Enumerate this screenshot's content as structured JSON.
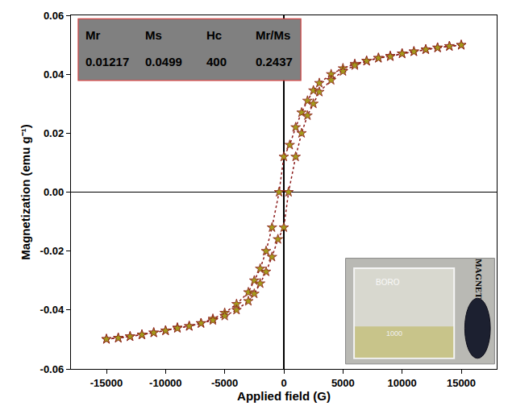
{
  "chart_data": {
    "type": "scatter",
    "x_label": "Applied field (G)",
    "y_label": "Magnetization (emu g⁻¹)",
    "xlim": [
      -18000,
      18000
    ],
    "xticks": [
      -15000,
      -10000,
      -5000,
      0,
      5000,
      10000,
      15000
    ],
    "ylim": [
      -0.06,
      0.06
    ],
    "yticks": [
      -0.06,
      -0.04,
      -0.02,
      {
        "value": 0,
        "label": "0.00"
      },
      0.02,
      0.04,
      0.06
    ],
    "grid": false,
    "marker": "star",
    "line_style": "dotted",
    "color": "#8b1a1a",
    "series": [
      {
        "x": [
          15000,
          14000,
          13000,
          12000,
          11000,
          10000,
          9000,
          8000,
          7000,
          6000,
          5000,
          4000,
          3000,
          2500,
          2000,
          1500,
          1000,
          500,
          0,
          -400,
          -1000,
          -1500,
          -2000,
          -2500,
          -3000,
          -4000,
          -5000,
          -6000,
          -7000,
          -8000,
          -9000,
          -10000,
          -11000,
          -12000,
          -13000,
          -14000,
          -15000
        ],
        "values": [
          0.0499,
          0.0495,
          0.049,
          0.0484,
          0.0477,
          0.047,
          0.0462,
          0.0455,
          0.0445,
          0.0435,
          0.042,
          0.04,
          0.037,
          0.0345,
          0.031,
          0.027,
          0.022,
          0.016,
          0.012,
          0.0,
          -0.012,
          -0.02,
          -0.026,
          -0.03,
          -0.034,
          -0.038,
          -0.041,
          -0.043,
          -0.0445,
          -0.0455,
          -0.046,
          -0.047,
          -0.0477,
          -0.0484,
          -0.049,
          -0.0495,
          -0.0499
        ]
      },
      {
        "x": [
          -15000,
          -14000,
          -13000,
          -12000,
          -11000,
          -10000,
          -9000,
          -8000,
          -7000,
          -6000,
          -5000,
          -4000,
          -3000,
          -2500,
          -2000,
          -1500,
          -1000,
          -500,
          0,
          400,
          1000,
          1500,
          2000,
          2500,
          3000,
          4000,
          5000,
          6000,
          7000,
          8000,
          9000,
          10000,
          11000,
          12000,
          13000,
          14000,
          15000
        ],
        "values": [
          -0.0499,
          -0.0495,
          -0.049,
          -0.0484,
          -0.0477,
          -0.047,
          -0.0462,
          -0.0455,
          -0.0445,
          -0.0435,
          -0.042,
          -0.04,
          -0.037,
          -0.0345,
          -0.031,
          -0.027,
          -0.022,
          -0.016,
          -0.012,
          0.0,
          0.012,
          0.02,
          0.026,
          0.03,
          0.034,
          0.038,
          0.041,
          0.043,
          0.0445,
          0.0455,
          0.046,
          0.047,
          0.0477,
          0.0484,
          0.049,
          0.0495,
          0.0499
        ]
      }
    ],
    "inset_table": {
      "columns": [
        "Mr",
        "Ms",
        "Hc",
        "Mr/Ms"
      ],
      "values": [
        0.01217,
        0.0499,
        400,
        0.2437
      ]
    },
    "inset_photo": {
      "labels": [
        "MAGNET",
        "BORO",
        "1000"
      ]
    }
  }
}
